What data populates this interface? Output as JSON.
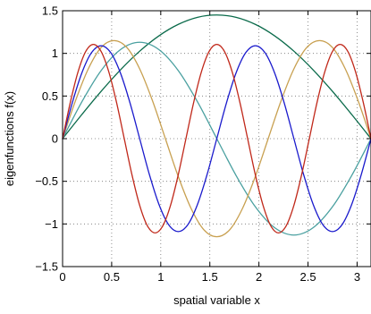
{
  "chart_data": {
    "type": "line",
    "title": "",
    "xlabel": "spatial variable x",
    "ylabel": "eigenfunctions f(x)",
    "xlim": [
      0,
      3.1416
    ],
    "ylim": [
      -1.5,
      1.5
    ],
    "xticks": [
      0,
      0.5,
      1,
      1.5,
      2,
      2.5,
      3
    ],
    "xtick_labels": [
      "0",
      "0.5",
      "1",
      "1.5",
      "2",
      "2.5",
      "3"
    ],
    "yticks": [
      -1.5,
      -1,
      -0.5,
      0,
      0.5,
      1,
      1.5
    ],
    "ytick_labels": [
      "−1.5",
      "−1",
      "−0.5",
      "0",
      "0.5",
      "1",
      "1.5"
    ],
    "grid": true,
    "legend": "none",
    "series": [
      {
        "color": "#0a6a4a",
        "x": [
          0,
          0.1963,
          0.3927,
          0.589,
          0.7854,
          0.9817,
          1.1781,
          1.3744,
          1.5708,
          1.7671,
          1.9635,
          2.1598,
          2.3562,
          2.5525,
          2.7489,
          2.9452,
          3.1416
        ],
        "y": [
          0,
          0.283,
          0.555,
          0.806,
          1.026,
          1.206,
          1.34,
          1.423,
          1.45,
          1.423,
          1.34,
          1.206,
          1.026,
          0.806,
          0.555,
          0.283,
          0
        ]
      },
      {
        "color": "#4aa0a0",
        "x": [
          0,
          0.1963,
          0.3927,
          0.589,
          0.7854,
          0.9817,
          1.1781,
          1.3744,
          1.5708,
          1.7671,
          1.9635,
          2.1598,
          2.3562,
          2.5525,
          2.7489,
          2.9452,
          3.1416
        ],
        "y": [
          0,
          0.432,
          0.799,
          1.044,
          1.13,
          1.044,
          0.799,
          0.432,
          0,
          -0.432,
          -0.799,
          -1.044,
          -1.13,
          -1.044,
          -0.799,
          -0.432,
          0
        ]
      },
      {
        "color": "#c8a050",
        "x": [
          0,
          0.1309,
          0.2618,
          0.3927,
          0.5236,
          0.6545,
          0.7854,
          0.9163,
          1.0472,
          1.1781,
          1.309,
          1.4399,
          1.5708,
          1.7017,
          1.8326,
          1.9635,
          2.0944,
          2.2253,
          2.3562,
          2.4871,
          2.618,
          2.7489,
          2.8798,
          3.0107,
          3.1416
        ],
        "y": [
          0,
          0.443,
          0.818,
          1.069,
          1.15,
          1.069,
          0.818,
          0.443,
          0,
          -0.443,
          -0.818,
          -1.069,
          -1.15,
          -1.069,
          -0.818,
          -0.443,
          0,
          0.443,
          0.818,
          1.069,
          1.15,
          1.069,
          0.818,
          0.443,
          0
        ]
      },
      {
        "color": "#1a1acc",
        "x": [
          0,
          0.0982,
          0.1963,
          0.2945,
          0.3927,
          0.4909,
          0.589,
          0.6872,
          0.7854,
          0.8836,
          0.9817,
          1.0799,
          1.1781,
          1.2763,
          1.3744,
          1.4726,
          1.5708,
          1.669,
          1.7671,
          1.8653,
          1.9635,
          2.0617,
          2.1598,
          2.258,
          2.3562,
          2.4544,
          2.5525,
          2.6507,
          2.7489,
          2.8471,
          2.9452,
          3.0434,
          3.1416
        ],
        "y": [
          0,
          0.418,
          0.771,
          1.008,
          1.09,
          1.008,
          0.771,
          0.418,
          0,
          -0.418,
          -0.771,
          -1.008,
          -1.09,
          -1.008,
          -0.771,
          -0.418,
          0,
          0.418,
          0.771,
          1.008,
          1.09,
          1.008,
          0.771,
          0.418,
          0,
          -0.418,
          -0.771,
          -1.008,
          -1.09,
          -1.008,
          -0.771,
          -0.418,
          0
        ]
      },
      {
        "color": "#c0281a",
        "x": [
          0,
          0.0785,
          0.1571,
          0.2356,
          0.3142,
          0.3927,
          0.4712,
          0.5498,
          0.6283,
          0.7069,
          0.7854,
          0.8639,
          0.9425,
          1.021,
          1.0996,
          1.1781,
          1.2566,
          1.3352,
          1.4137,
          1.4923,
          1.5708,
          1.6493,
          1.7279,
          1.8064,
          1.885,
          1.9635,
          2.042,
          2.1206,
          2.1991,
          2.2777,
          2.3562,
          2.4347,
          2.5133,
          2.5918,
          2.6704,
          2.7489,
          2.8274,
          2.906,
          2.9845,
          3.0631,
          3.1416
        ],
        "y": [
          0,
          0.424,
          0.782,
          1.022,
          1.105,
          1.022,
          0.782,
          0.424,
          0,
          -0.424,
          -0.782,
          -1.022,
          -1.105,
          -1.022,
          -0.782,
          -0.424,
          0,
          0.424,
          0.782,
          1.022,
          1.105,
          1.022,
          0.782,
          0.424,
          0,
          -0.424,
          -0.782,
          -1.022,
          -1.105,
          -1.022,
          -0.782,
          -0.424,
          0,
          0.424,
          0.782,
          1.022,
          1.105,
          1.022,
          0.782,
          0.424,
          0
        ]
      }
    ]
  }
}
